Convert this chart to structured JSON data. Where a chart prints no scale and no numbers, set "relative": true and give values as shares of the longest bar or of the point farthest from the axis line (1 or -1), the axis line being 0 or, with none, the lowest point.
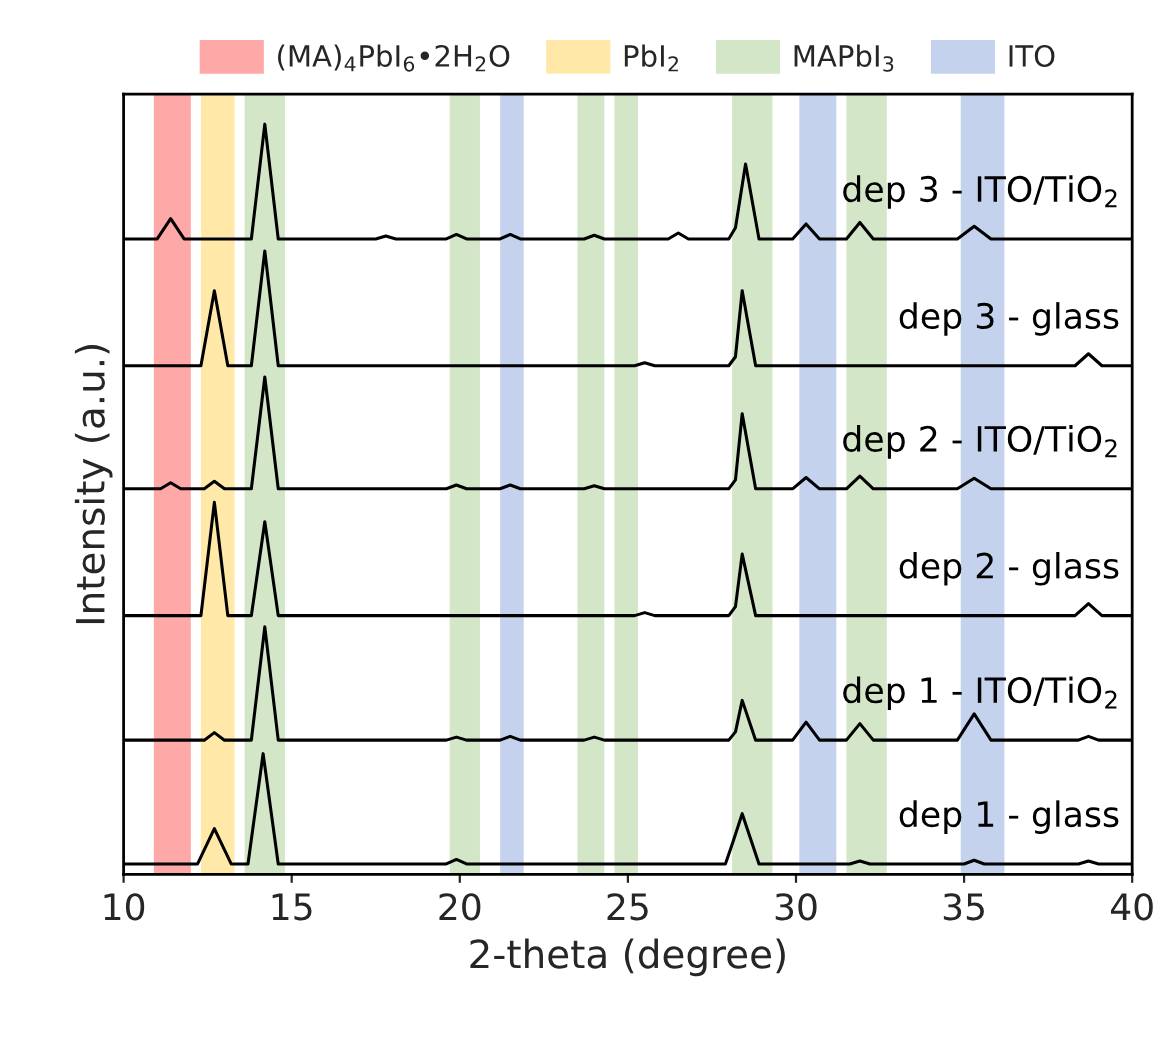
{
  "chart_data": {
    "type": "line",
    "relative": true,
    "xlabel": "2-theta (degree)",
    "ylabel": "Intensity (a.u.)",
    "xlim": [
      10,
      40
    ],
    "xticks": [
      10,
      15,
      20,
      25,
      30,
      35,
      40
    ],
    "tick_labels": "x",
    "grid": false,
    "legend": "top",
    "line_style": "solid",
    "marker": "none",
    "bands": [
      {
        "axis": "x",
        "from": 10.9,
        "to": 12.0,
        "color": "#ffa8a8",
        "label": "(MA)$_{4}$PbI$_{6}$•2H$_{2}$O"
      },
      {
        "axis": "x",
        "from": 12.3,
        "to": 13.3,
        "color": "#ffe8a8",
        "label": "PbI$_{2}$"
      },
      {
        "axis": "x",
        "from": 13.6,
        "to": 14.8,
        "color": "#d3e6c8",
        "label": "MAPbI$_{3}$"
      },
      {
        "axis": "x",
        "from": 19.7,
        "to": 20.6,
        "color": "#d3e6c8"
      },
      {
        "axis": "x",
        "from": 23.5,
        "to": 24.3,
        "color": "#d3e6c8"
      },
      {
        "axis": "x",
        "from": 24.6,
        "to": 25.3,
        "color": "#d3e6c8"
      },
      {
        "axis": "x",
        "from": 28.1,
        "to": 29.3,
        "color": "#d3e6c8"
      },
      {
        "axis": "x",
        "from": 31.5,
        "to": 32.7,
        "color": "#d3e6c8"
      },
      {
        "axis": "x",
        "from": 21.2,
        "to": 21.9,
        "color": "#c4d2ee",
        "label": "ITO"
      },
      {
        "axis": "x",
        "from": 30.1,
        "to": 31.2,
        "color": "#c4d2ee"
      },
      {
        "axis": "x",
        "from": 34.9,
        "to": 36.2,
        "color": "#c4d2ee"
      }
    ],
    "series": [
      {
        "name": "dep 3 - ITO/TiO$_{2}$",
        "color": "#000000",
        "x": [
          10,
          11.0,
          11.4,
          11.8,
          13.8,
          14.2,
          14.6,
          17.5,
          17.8,
          18.1,
          19.6,
          19.9,
          20.2,
          21.2,
          21.5,
          21.8,
          23.7,
          24.0,
          24.3,
          26.2,
          26.5,
          26.8,
          28.0,
          28.2,
          28.5,
          28.9,
          29.9,
          30.3,
          30.7,
          31.5,
          31.9,
          32.3,
          34.8,
          35.3,
          35.8,
          40
        ],
        "values": [
          0.847,
          0.847,
          0.874,
          0.847,
          0.847,
          1.0,
          0.847,
          0.847,
          0.851,
          0.847,
          0.847,
          0.853,
          0.847,
          0.847,
          0.853,
          0.847,
          0.847,
          0.852,
          0.847,
          0.847,
          0.855,
          0.847,
          0.847,
          0.862,
          0.947,
          0.847,
          0.847,
          0.867,
          0.847,
          0.847,
          0.869,
          0.847,
          0.847,
          0.864,
          0.847,
          0.847
        ]
      },
      {
        "name": "dep 3 - glass",
        "color": "#000000",
        "x": [
          10,
          12.3,
          12.7,
          13.1,
          13.8,
          14.2,
          14.6,
          25.2,
          25.5,
          25.8,
          28.0,
          28.2,
          28.4,
          28.8,
          38.3,
          38.7,
          39.1,
          40
        ],
        "values": [
          0.678,
          0.678,
          0.778,
          0.678,
          0.678,
          0.831,
          0.678,
          0.678,
          0.682,
          0.678,
          0.678,
          0.69,
          0.778,
          0.678,
          0.678,
          0.694,
          0.678,
          0.678
        ]
      },
      {
        "name": "dep 2 - ITO/TiO$_{2}$",
        "color": "#000000",
        "x": [
          10,
          11.1,
          11.4,
          11.7,
          12.4,
          12.7,
          13.0,
          13.8,
          14.2,
          14.6,
          19.6,
          19.9,
          20.2,
          21.2,
          21.5,
          21.8,
          23.7,
          24.0,
          24.3,
          28.0,
          28.2,
          28.4,
          28.8,
          29.9,
          30.3,
          30.7,
          31.5,
          31.9,
          32.3,
          34.8,
          35.3,
          35.8,
          40
        ],
        "values": [
          0.514,
          0.514,
          0.522,
          0.514,
          0.514,
          0.524,
          0.514,
          0.514,
          0.663,
          0.514,
          0.514,
          0.519,
          0.514,
          0.514,
          0.519,
          0.514,
          0.514,
          0.518,
          0.514,
          0.514,
          0.526,
          0.614,
          0.514,
          0.514,
          0.529,
          0.514,
          0.514,
          0.531,
          0.514,
          0.514,
          0.528,
          0.514,
          0.514
        ]
      },
      {
        "name": "dep 2 - glass",
        "color": "#000000",
        "x": [
          10,
          12.3,
          12.7,
          13.1,
          13.8,
          14.2,
          14.6,
          25.2,
          25.5,
          25.8,
          28.0,
          28.2,
          28.4,
          28.8,
          38.3,
          38.7,
          39.1,
          40
        ],
        "values": [
          0.345,
          0.345,
          0.496,
          0.345,
          0.345,
          0.47,
          0.345,
          0.345,
          0.349,
          0.345,
          0.345,
          0.357,
          0.427,
          0.345,
          0.345,
          0.361,
          0.345,
          0.345
        ]
      },
      {
        "name": "dep 1 - ITO/TiO$_{2}$",
        "color": "#000000",
        "x": [
          10,
          12.4,
          12.7,
          13.0,
          13.8,
          14.2,
          14.6,
          19.6,
          19.9,
          20.2,
          21.2,
          21.5,
          21.8,
          23.7,
          24.0,
          24.3,
          28.0,
          28.2,
          28.4,
          28.8,
          29.9,
          30.3,
          30.7,
          31.5,
          31.9,
          32.3,
          34.8,
          35.3,
          35.8,
          38.4,
          38.7,
          39.0,
          40
        ],
        "values": [
          0.179,
          0.179,
          0.189,
          0.179,
          0.179,
          0.33,
          0.179,
          0.179,
          0.183,
          0.179,
          0.179,
          0.184,
          0.179,
          0.179,
          0.183,
          0.179,
          0.179,
          0.19,
          0.232,
          0.179,
          0.179,
          0.203,
          0.179,
          0.179,
          0.201,
          0.179,
          0.179,
          0.214,
          0.179,
          0.179,
          0.184,
          0.179,
          0.179
        ]
      },
      {
        "name": "dep 1 - glass",
        "color": "#000000",
        "x": [
          10,
          12.2,
          12.7,
          13.2,
          13.7,
          14.15,
          14.6,
          19.6,
          19.9,
          20.2,
          27.9,
          28.1,
          28.4,
          28.9,
          31.6,
          31.9,
          32.2,
          35.0,
          35.3,
          35.6,
          38.4,
          38.7,
          39.0,
          40
        ],
        "values": [
          0.014,
          0.014,
          0.061,
          0.014,
          0.014,
          0.161,
          0.014,
          0.014,
          0.02,
          0.014,
          0.014,
          0.04,
          0.081,
          0.014,
          0.014,
          0.018,
          0.014,
          0.014,
          0.019,
          0.014,
          0.014,
          0.018,
          0.014,
          0.014
        ]
      }
    ]
  }
}
